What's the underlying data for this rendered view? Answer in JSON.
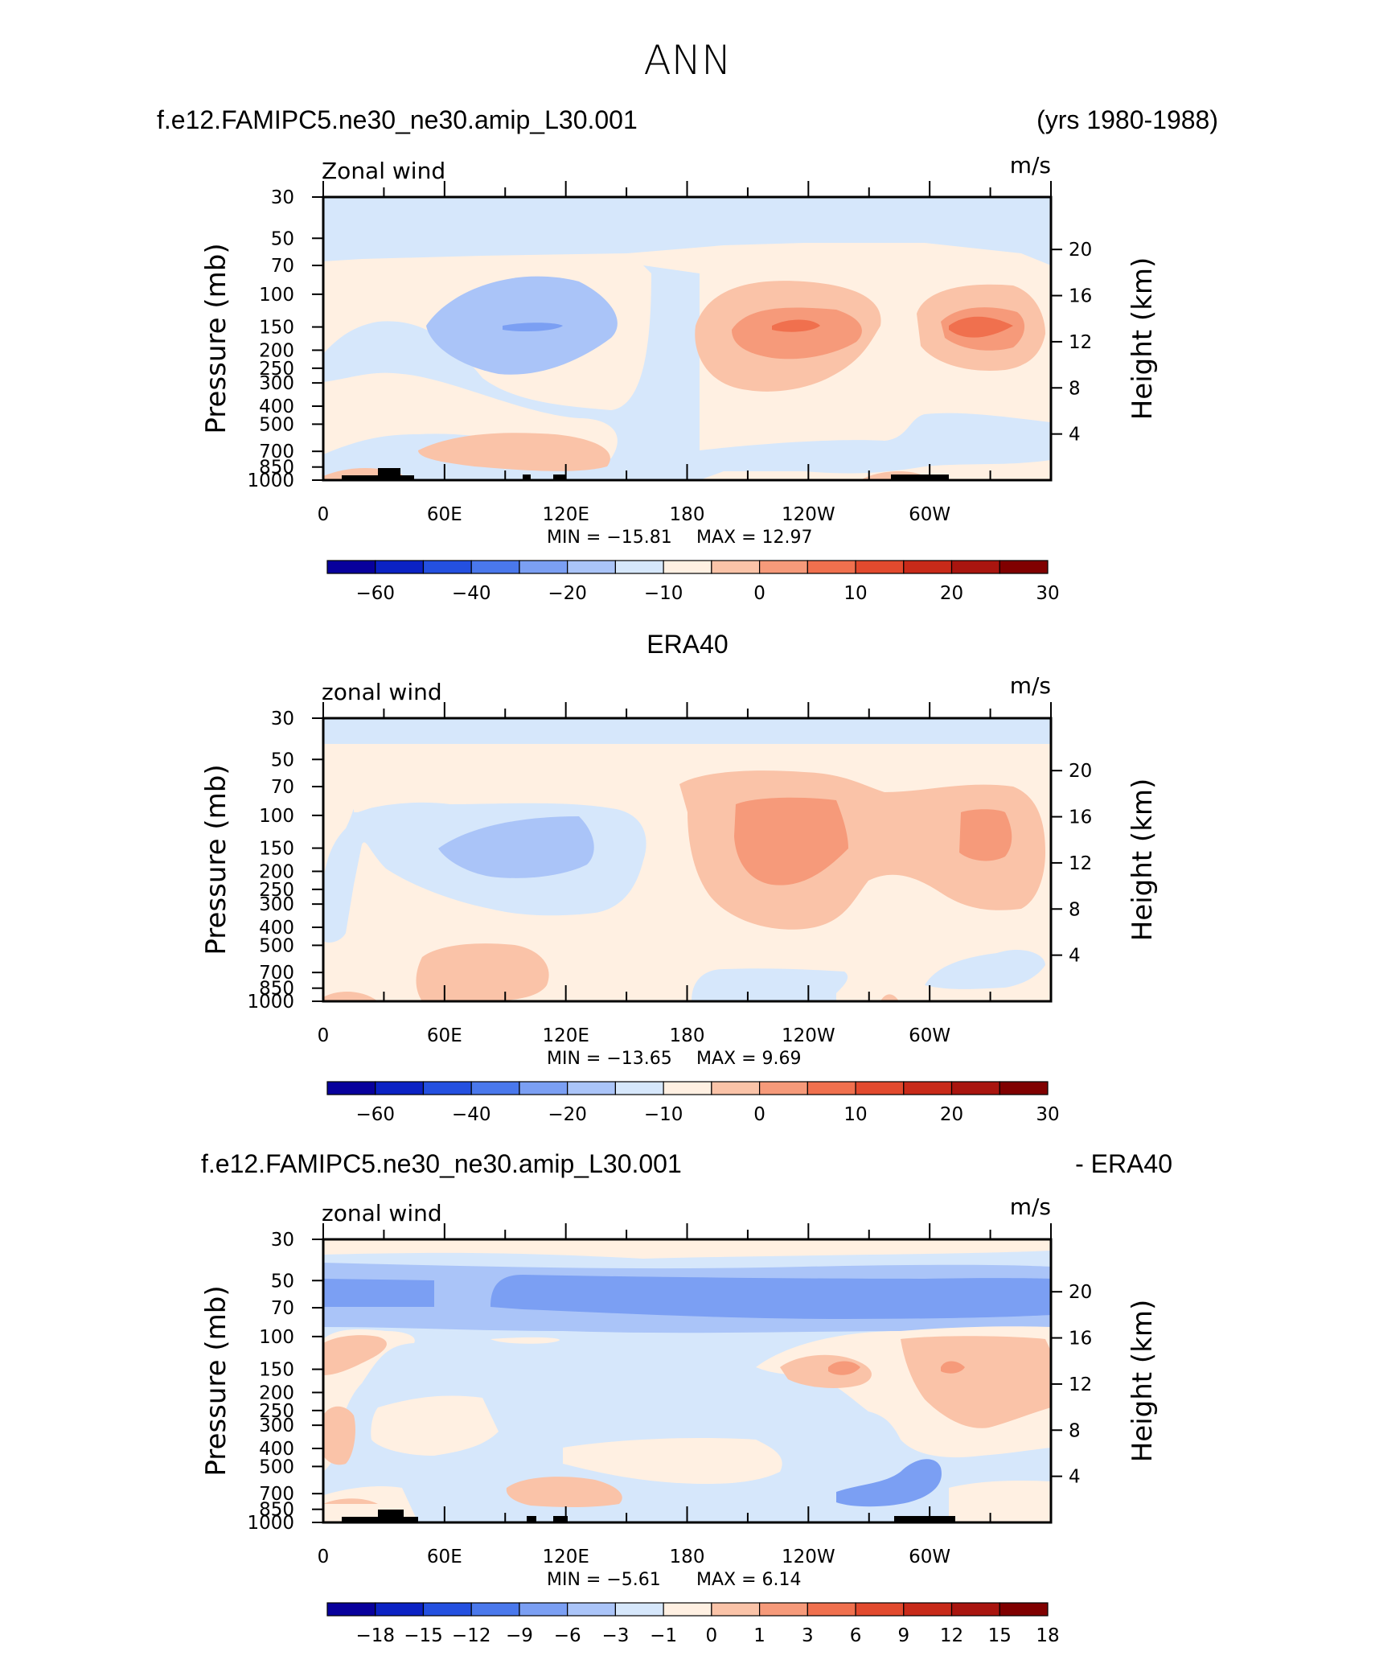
{
  "figure": {
    "title": "ANN",
    "case_name": "f.e12.FAMIPC5.ne30_ne30.amip_L30.001",
    "years": "(yrs 1980-1988)",
    "obs_name": "ERA40",
    "diff_left": "f.e12.FAMIPC5.ne30_ne30.amip_L30.001",
    "diff_right": "- ERA40"
  },
  "colors": {
    "model_scale": [
      "#08009c",
      "#0b22c4",
      "#2450e0",
      "#4a78ec",
      "#7b9ff3",
      "#aac4f8",
      "#d6e7fb",
      "#fff0e2",
      "#fac3a8",
      "#f69a7a",
      "#f0704e",
      "#e24a2e",
      "#c82a19",
      "#a9150f",
      "#800000"
    ],
    "diff_scale": [
      "#08009c",
      "#0b22c4",
      "#2450e0",
      "#4a78ec",
      "#7b9ff3",
      "#aac4f8",
      "#d6e7fb",
      "#fff0e2",
      "#fac3a8",
      "#f69a7a",
      "#f0704e",
      "#e24a2e",
      "#c82a19",
      "#a9150f",
      "#800000"
    ],
    "topography": "#000000"
  },
  "chart_data": [
    {
      "type": "contour",
      "panel": "model",
      "left_label": "Zonal wind",
      "units": "m/s",
      "ylabel": "Pressure (mb)",
      "ylabel2": "Height (km)",
      "y_ticks": [
        "30",
        "50",
        "70",
        "100",
        "150",
        "200",
        "250",
        "300",
        "400",
        "500",
        "700",
        "850",
        "1000"
      ],
      "y_tick_values": [
        30,
        50,
        70,
        100,
        150,
        200,
        250,
        300,
        400,
        500,
        700,
        850,
        1000
      ],
      "y2_ticks": [
        "20",
        "16",
        "12",
        "8",
        "4"
      ],
      "x_ticks": [
        "0",
        "60E",
        "120E",
        "180",
        "120W",
        "60W"
      ],
      "x_tick_values": [
        0,
        60,
        120,
        180,
        240,
        300
      ],
      "xlim": [
        0,
        360
      ],
      "ylim": [
        1000,
        30
      ],
      "min_label": "MIN = −15.81",
      "max_label": "MAX =   12.97",
      "min": -15.81,
      "max": 12.97,
      "colorbar_labels": [
        "−60",
        "−40",
        "−20",
        "−10",
        "0",
        "10",
        "20",
        "30"
      ],
      "colorbar_label_bins": [
        1,
        3,
        5,
        7,
        9,
        11,
        13,
        15
      ],
      "contour_levels": [
        -70,
        -60,
        -50,
        -40,
        -30,
        -20,
        -15,
        -10,
        -5,
        0,
        5,
        10,
        15,
        20,
        25,
        30,
        35
      ]
    },
    {
      "type": "contour",
      "panel": "obs",
      "left_label": "zonal wind",
      "units": "m/s",
      "ylabel": "Pressure (mb)",
      "ylabel2": "Height (km)",
      "y_ticks": [
        "30",
        "50",
        "70",
        "100",
        "150",
        "200",
        "250",
        "300",
        "400",
        "500",
        "700",
        "850",
        "1000"
      ],
      "y_tick_values": [
        30,
        50,
        70,
        100,
        150,
        200,
        250,
        300,
        400,
        500,
        700,
        850,
        1000
      ],
      "y2_ticks": [
        "20",
        "16",
        "12",
        "8",
        "4"
      ],
      "x_ticks": [
        "0",
        "60E",
        "120E",
        "180",
        "120W",
        "60W"
      ],
      "x_tick_values": [
        0,
        60,
        120,
        180,
        240,
        300
      ],
      "xlim": [
        0,
        360
      ],
      "ylim": [
        1000,
        30
      ],
      "min_label": "MIN = −13.65",
      "max_label": "MAX =    9.69",
      "min": -13.65,
      "max": 9.69,
      "colorbar_labels": [
        "−60",
        "−40",
        "−20",
        "−10",
        "0",
        "10",
        "20",
        "30"
      ],
      "colorbar_label_bins": [
        1,
        3,
        5,
        7,
        9,
        11,
        13,
        15
      ]
    },
    {
      "type": "contour",
      "panel": "diff",
      "left_label": "zonal wind",
      "units": "m/s",
      "ylabel": "Pressure (mb)",
      "ylabel2": "Height (km)",
      "y_ticks": [
        "30",
        "50",
        "70",
        "100",
        "150",
        "200",
        "250",
        "300",
        "400",
        "500",
        "700",
        "850",
        "1000"
      ],
      "y_tick_values": [
        30,
        50,
        70,
        100,
        150,
        200,
        250,
        300,
        400,
        500,
        700,
        850,
        1000
      ],
      "y2_ticks": [
        "20",
        "16",
        "12",
        "8",
        "4"
      ],
      "x_ticks": [
        "0",
        "60E",
        "120E",
        "180",
        "120W",
        "60W"
      ],
      "x_tick_values": [
        0,
        60,
        120,
        180,
        240,
        300
      ],
      "xlim": [
        0,
        360
      ],
      "ylim": [
        1000,
        30
      ],
      "min_label": "MIN =    −5.61",
      "max_label": "MAX =     6.14",
      "min": -5.61,
      "max": 6.14,
      "colorbar_labels": [
        "−18",
        "−15",
        "−12",
        "−9",
        "−6",
        "−3",
        "−1",
        "0",
        "1",
        "3",
        "6",
        "9",
        "12",
        "15",
        "18"
      ],
      "colorbar_label_bins": [
        1,
        2,
        3,
        4,
        5,
        6,
        7,
        8,
        9,
        10,
        11,
        12,
        13,
        14,
        15
      ],
      "contour_levels": [
        -18,
        -15,
        -12,
        -9,
        -6,
        -3,
        -1,
        0,
        1,
        3,
        6,
        9,
        12,
        15,
        18
      ]
    }
  ]
}
